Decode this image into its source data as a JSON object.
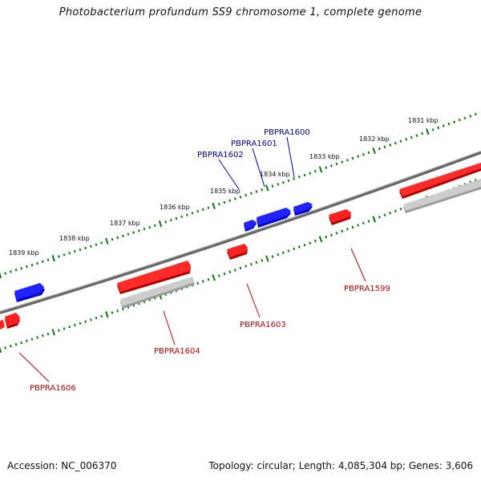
{
  "title": "Photobacterium profundum SS9 chromosome 1, complete genome",
  "footer": {
    "accession": "Accession: NC_006370",
    "summary": "Topology: circular; Length: 4,085,304 bp; Genes: 3,606"
  },
  "colors": {
    "forward_gene": "#e00000",
    "reverse_gene": "#0000ee",
    "forward_label": "#cc0000",
    "reverse_label": "#0000aa",
    "backbone": "#777777",
    "tick": "#0a7a0a",
    "shadow_gene": "#bbbbbb"
  },
  "kbp_labels": [
    "1831 kbp",
    "1832 kbp",
    "1833 kbp",
    "1834 kbp",
    "1835 kbp",
    "1836 kbp",
    "1837 kbp",
    "1838 kbp",
    "1839 kbp"
  ],
  "gene_labels": {
    "reverse": [
      "PBPRA1600",
      "PBPRA1601",
      "PBPRA1602"
    ],
    "forward": [
      "PBPRA1599",
      "PBPRA1603",
      "PBPRA1604",
      "PBPRA1606"
    ]
  }
}
